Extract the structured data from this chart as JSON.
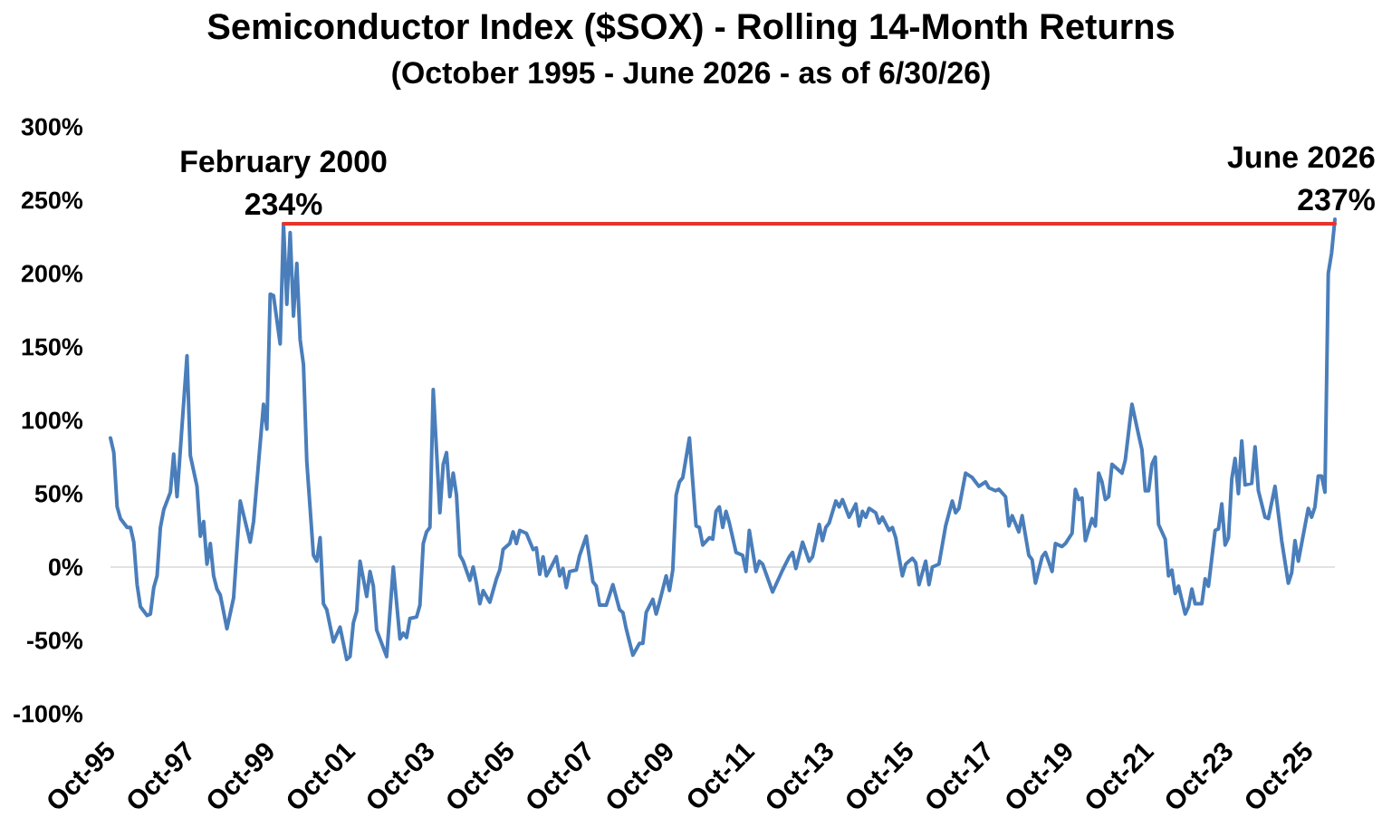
{
  "chart_data": {
    "type": "line",
    "title": "Semiconductor Index ($SOX) - Rolling 14-Month Returns",
    "subtitle": "(October 1995 - June 2026 - as of 6/30/26)",
    "x": [
      "1995-10",
      "1995-11",
      "1995-12",
      "1996-01",
      "1996-03",
      "1996-04",
      "1996-05",
      "1996-06",
      "1996-07",
      "1996-09",
      "1996-10",
      "1996-11",
      "1996-12",
      "1997-01",
      "1997-02",
      "1997-04",
      "1997-05",
      "1997-06",
      "1997-09",
      "1997-10",
      "1997-12",
      "1998-01",
      "1998-02",
      "1998-03",
      "1998-04",
      "1998-05",
      "1998-06",
      "1998-07",
      "1998-09",
      "1998-11",
      "1999-01",
      "1999-04",
      "1999-05",
      "1999-08",
      "1999-09",
      "1999-10",
      "1999-11",
      "2000-01",
      "2000-02",
      "2000-03",
      "2000-04",
      "2000-05",
      "2000-06",
      "2000-07",
      "2000-08",
      "2000-09",
      "2000-11",
      "2000-12",
      "2001-01",
      "2001-02",
      "2001-03",
      "2001-05",
      "2001-07",
      "2001-09",
      "2001-10",
      "2001-11",
      "2001-12",
      "2002-01",
      "2002-03",
      "2002-04",
      "2002-05",
      "2002-06",
      "2002-09",
      "2002-11",
      "2003-01",
      "2003-02",
      "2003-03",
      "2003-04",
      "2003-06",
      "2003-07",
      "2003-08",
      "2003-09",
      "2003-10",
      "2003-11",
      "2004-01",
      "2004-02",
      "2004-03",
      "2004-04",
      "2004-05",
      "2004-06",
      "2004-07",
      "2004-08",
      "2004-10",
      "2004-11",
      "2004-12",
      "2005-01",
      "2005-02",
      "2005-04",
      "2005-06",
      "2005-07",
      "2005-08",
      "2005-10",
      "2005-11",
      "2005-12",
      "2006-01",
      "2006-03",
      "2006-05",
      "2006-06",
      "2006-07",
      "2006-08",
      "2006-09",
      "2006-10",
      "2006-12",
      "2007-01",
      "2007-02",
      "2007-03",
      "2007-04",
      "2007-06",
      "2007-07",
      "2007-09",
      "2007-11",
      "2007-12",
      "2008-01",
      "2008-03",
      "2008-05",
      "2008-07",
      "2008-08",
      "2008-09",
      "2008-11",
      "2009-01",
      "2009-02",
      "2009-03",
      "2009-05",
      "2009-06",
      "2009-07",
      "2009-09",
      "2009-10",
      "2009-11",
      "2009-12",
      "2010-01",
      "2010-02",
      "2010-04",
      "2010-06",
      "2010-07",
      "2010-08",
      "2010-10",
      "2010-11",
      "2010-12",
      "2011-01",
      "2011-02",
      "2011-03",
      "2011-04",
      "2011-06",
      "2011-08",
      "2011-09",
      "2011-10",
      "2011-12",
      "2012-01",
      "2012-02",
      "2012-05",
      "2012-08",
      "2012-10",
      "2012-11",
      "2012-12",
      "2013-02",
      "2013-04",
      "2013-05",
      "2013-07",
      "2013-08",
      "2013-09",
      "2013-10",
      "2013-12",
      "2014-01",
      "2014-02",
      "2014-04",
      "2014-06",
      "2014-07",
      "2014-08",
      "2014-09",
      "2014-10",
      "2014-12",
      "2015-01",
      "2015-02",
      "2015-04",
      "2015-05",
      "2015-06",
      "2015-08",
      "2015-09",
      "2015-11",
      "2015-12",
      "2016-01",
      "2016-03",
      "2016-04",
      "2016-05",
      "2016-07",
      "2016-09",
      "2016-11",
      "2016-12",
      "2017-01",
      "2017-03",
      "2017-05",
      "2017-07",
      "2017-09",
      "2017-10",
      "2017-12",
      "2018-01",
      "2018-03",
      "2018-04",
      "2018-05",
      "2018-07",
      "2018-08",
      "2018-10",
      "2018-11",
      "2018-12",
      "2019-02",
      "2019-03",
      "2019-05",
      "2019-06",
      "2019-08",
      "2019-09",
      "2019-11",
      "2019-12",
      "2020-01",
      "2020-02",
      "2020-03",
      "2020-05",
      "2020-06",
      "2020-07",
      "2020-08",
      "2020-09",
      "2020-10",
      "2020-11",
      "2021-02",
      "2021-03",
      "2021-05",
      "2021-07",
      "2021-08",
      "2021-09",
      "2021-10",
      "2021-11",
      "2021-12",
      "2022-01",
      "2022-03",
      "2022-04",
      "2022-05",
      "2022-06",
      "2022-07",
      "2022-09",
      "2022-10",
      "2022-11",
      "2022-12",
      "2023-02",
      "2023-03",
      "2023-04",
      "2023-06",
      "2023-07",
      "2023-08",
      "2023-09",
      "2023-10",
      "2023-11",
      "2023-12",
      "2024-01",
      "2024-02",
      "2024-03",
      "2024-05",
      "2024-06",
      "2024-07",
      "2024-09",
      "2024-10",
      "2024-12",
      "2025-02",
      "2025-04",
      "2025-05",
      "2025-06",
      "2025-07",
      "2025-10",
      "2025-11",
      "2025-12",
      "2026-01",
      "2026-02",
      "2026-03",
      "2026-04",
      "2026-05",
      "2026-06"
    ],
    "series": [
      {
        "color": "#4a7ebb",
        "values": [
          88,
          78,
          41,
          33,
          27,
          27,
          17,
          -12,
          -27,
          -33,
          -32,
          -14,
          -6,
          27,
          39,
          51,
          77,
          48,
          144,
          76,
          55,
          21,
          31,
          2,
          16,
          -6,
          -15,
          -19,
          -42,
          -21,
          45,
          17,
          31,
          111,
          94,
          186,
          185,
          152,
          234,
          179,
          228,
          171,
          207,
          155,
          138,
          72,
          8,
          4,
          20,
          -25,
          -29,
          -51,
          -41,
          -63,
          -61,
          -38,
          -30,
          4,
          -20,
          -3,
          -13,
          -43,
          -61,
          0,
          -49,
          -45,
          -48,
          -35,
          -34,
          -26,
          16,
          24,
          27,
          121,
          37,
          70,
          78,
          48,
          64,
          49,
          8,
          4,
          -9,
          0,
          -11,
          -25,
          -16,
          -24,
          -8,
          -2,
          12,
          16,
          24,
          16,
          25,
          23,
          12,
          13,
          -5,
          7,
          -6,
          -2,
          7,
          -6,
          -1,
          -14,
          -3,
          -2,
          8,
          21,
          -10,
          -13,
          -26,
          -26,
          -12,
          -29,
          -31,
          -42,
          -60,
          -52,
          -52,
          -31,
          -22,
          -32,
          -24,
          -6,
          -16,
          -2,
          49,
          58,
          61,
          88,
          28,
          27,
          15,
          20,
          19,
          38,
          41,
          27,
          38,
          30,
          10,
          8,
          -3,
          25,
          -3,
          4,
          2,
          -17,
          -2,
          7,
          10,
          -1,
          17,
          4,
          7,
          29,
          18,
          27,
          30,
          45,
          41,
          46,
          34,
          43,
          28,
          38,
          34,
          40,
          37,
          30,
          34,
          25,
          27,
          20,
          -6,
          2,
          6,
          3,
          -12,
          4,
          -12,
          0,
          2,
          28,
          45,
          37,
          40,
          64,
          61,
          55,
          58,
          54,
          52,
          53,
          48,
          28,
          35,
          24,
          35,
          8,
          5,
          -11,
          7,
          10,
          -3,
          16,
          14,
          16,
          23,
          53,
          46,
          47,
          18,
          33,
          28,
          64,
          58,
          46,
          48,
          70,
          64,
          73,
          111,
          90,
          80,
          52,
          52,
          70,
          75,
          29,
          19,
          -6,
          -2,
          -18,
          -13,
          -32,
          -27,
          -15,
          -25,
          -25,
          -8,
          -13,
          25,
          26,
          43,
          15,
          20,
          60,
          74,
          50,
          86,
          56,
          57,
          82,
          52,
          34,
          33,
          55,
          18,
          -11,
          -4,
          18,
          4,
          40,
          34,
          41,
          62,
          62,
          51,
          200,
          214,
          237
        ]
      },
      {
        "type": "line",
        "color": "#e8332a",
        "x": [
          "2000-02",
          "2026-06"
        ],
        "values": [
          234,
          234
        ]
      }
    ],
    "xlim": [
      "1995-10",
      "2026-06"
    ],
    "xticks": [
      {
        "value": "1995-10",
        "label": "Oct-95"
      },
      {
        "value": "1997-10",
        "label": "Oct-97"
      },
      {
        "value": "1999-10",
        "label": "Oct-99"
      },
      {
        "value": "2001-10",
        "label": "Oct-01"
      },
      {
        "value": "2003-10",
        "label": "Oct-03"
      },
      {
        "value": "2005-10",
        "label": "Oct-05"
      },
      {
        "value": "2007-10",
        "label": "Oct-07"
      },
      {
        "value": "2009-10",
        "label": "Oct-09"
      },
      {
        "value": "2011-10",
        "label": "Oct-11"
      },
      {
        "value": "2013-10",
        "label": "Oct-13"
      },
      {
        "value": "2015-10",
        "label": "Oct-15"
      },
      {
        "value": "2017-10",
        "label": "Oct-17"
      },
      {
        "value": "2019-10",
        "label": "Oct-19"
      },
      {
        "value": "2021-10",
        "label": "Oct-21"
      },
      {
        "value": "2023-10",
        "label": "Oct-23"
      },
      {
        "value": "2025-10",
        "label": "Oct-25"
      }
    ],
    "ylim": [
      -100,
      300
    ],
    "yticks": [
      {
        "value": -100,
        "label": "-100%"
      },
      {
        "value": -50,
        "label": "-50%"
      },
      {
        "value": 0,
        "label": "0%"
      },
      {
        "value": 50,
        "label": "50%"
      },
      {
        "value": 100,
        "label": "100%"
      },
      {
        "value": 150,
        "label": "150%"
      },
      {
        "value": 200,
        "label": "200%"
      },
      {
        "value": 250,
        "label": "250%"
      },
      {
        "value": 300,
        "label": "300%"
      }
    ],
    "ref_lines": [
      {
        "axis": "y",
        "value": 0,
        "color": "#d9d9d9"
      }
    ],
    "annotations": [
      {
        "text": "February 2000",
        "x": "2000-02",
        "y": 234
      },
      {
        "text": "234%",
        "x": "2000-02",
        "y": 234
      },
      {
        "text": "June 2026",
        "x": "2026-06",
        "y": 237
      },
      {
        "text": "237%",
        "x": "2026-06",
        "y": 237
      }
    ]
  }
}
